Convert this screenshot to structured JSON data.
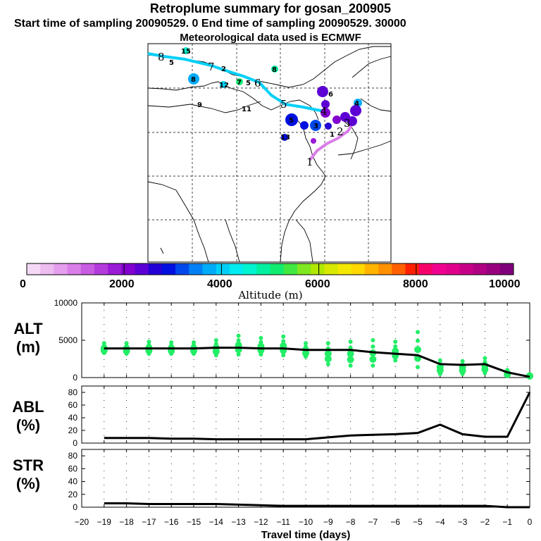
{
  "header": {
    "title": "Retroplume summary for gosan_200905",
    "subtitle": "Start time of sampling 20090529.    0     End time of sampling 20090529. 30000",
    "met_line": "Meteorological data used is ECMWF"
  },
  "colorbar": {
    "ticks": [
      "0",
      "2000",
      "4000",
      "6000",
      "8000",
      "10000"
    ],
    "label": "Altitude (m)",
    "colors": [
      "#f5d8f5",
      "#eebcf0",
      "#e59ded",
      "#d97ee8",
      "#c85ce2",
      "#b33bdc",
      "#9a1ad6",
      "#8200d0",
      "#5c00d4",
      "#2200d6",
      "#0010e0",
      "#0048ec",
      "#0080f4",
      "#00acf8",
      "#00d0f8",
      "#00ecf0",
      "#00f4d0",
      "#00f0a0",
      "#10ec70",
      "#40e840",
      "#80e820",
      "#b0e800",
      "#d8e800",
      "#f4e800",
      "#ffd800",
      "#ffb400",
      "#ff9000",
      "#ff6000",
      "#ff2000",
      "#f8006c",
      "#f00090",
      "#e0008c",
      "#c80088",
      "#b00084",
      "#980080",
      "#80007c"
    ]
  },
  "map": {
    "back_traj_labels": [
      "8",
      "7",
      "6",
      "5",
      "4",
      "3",
      "2",
      "1"
    ],
    "cluster_labels": [
      "15",
      "5",
      "2",
      "8",
      "12",
      "7",
      "5",
      "8",
      "11",
      "9",
      "6",
      "4",
      "5",
      "13",
      "1",
      "3"
    ]
  },
  "chart_data": [
    {
      "type": "scatter+line",
      "panel": "ALT",
      "ylabel_line1": "ALT",
      "ylabel_line2": "(m)",
      "ylim": [
        0,
        10000
      ],
      "yticks": [
        "0",
        "5000",
        "10000"
      ],
      "xlim": [
        -20,
        0
      ],
      "x": [
        -19,
        -18,
        -17,
        -16,
        -15,
        -14,
        -13,
        -12,
        -11,
        -10,
        -9,
        -8,
        -7,
        -6,
        -5,
        -4,
        -3,
        -2,
        -1,
        0
      ],
      "line_values": [
        3900,
        3900,
        3900,
        3900,
        3900,
        4000,
        4000,
        3900,
        3900,
        3700,
        3700,
        3700,
        3400,
        3200,
        3000,
        1800,
        1700,
        1800,
        700,
        100
      ],
      "scatter_min": [
        3300,
        3200,
        3200,
        3200,
        3200,
        3000,
        3100,
        3100,
        3000,
        2800,
        1800,
        1600,
        1600,
        2300,
        1400,
        500,
        500,
        600,
        200,
        100
      ],
      "scatter_max": [
        4600,
        4600,
        4800,
        4700,
        4700,
        5000,
        5600,
        5300,
        5500,
        4600,
        4600,
        4800,
        5000,
        4800,
        6100,
        2300,
        2200,
        2600,
        1000,
        400
      ],
      "series_color": "#22ee66"
    },
    {
      "type": "line",
      "panel": "ABL",
      "ylabel_line1": "ABL",
      "ylabel_line2": "(%)",
      "ylim": [
        0,
        90
      ],
      "yticks": [
        "0",
        "20",
        "40",
        "60",
        "80"
      ],
      "xlim": [
        -20,
        0
      ],
      "x": [
        -19,
        -18,
        -17,
        -16,
        -15,
        -14,
        -13,
        -12,
        -11,
        -10,
        -9,
        -8,
        -7,
        -6,
        -5,
        -4,
        -3,
        -2,
        -1,
        0
      ],
      "values": [
        8,
        8,
        8,
        7,
        7,
        6,
        6,
        6,
        6,
        6,
        9,
        12,
        13,
        14,
        16,
        29,
        14,
        10,
        10,
        80
      ]
    },
    {
      "type": "line",
      "panel": "STR",
      "ylabel_line1": "STR",
      "ylabel_line2": "(%)",
      "ylim": [
        0,
        90
      ],
      "yticks": [
        "0",
        "20",
        "40",
        "60",
        "80"
      ],
      "xlim": [
        -20,
        0
      ],
      "x": [
        -19,
        -18,
        -17,
        -16,
        -15,
        -14,
        -13,
        -12,
        -11,
        -10,
        -9,
        -8,
        -7,
        -6,
        -5,
        -4,
        -3,
        -2,
        -1,
        0
      ],
      "values": [
        6,
        6,
        5,
        5,
        5,
        5,
        4,
        3,
        2,
        2,
        2,
        2,
        2,
        2,
        2,
        2,
        2,
        2,
        0,
        0
      ],
      "xlabel": "Travel time (days)",
      "xticks": [
        "−20",
        "−19",
        "−18",
        "−17",
        "−16",
        "−15",
        "−14",
        "−13",
        "−12",
        "−11",
        "−10",
        "−9",
        "−8",
        "−7",
        "−6",
        "−5",
        "−4",
        "−3",
        "−2",
        "−1",
        "0"
      ]
    }
  ]
}
